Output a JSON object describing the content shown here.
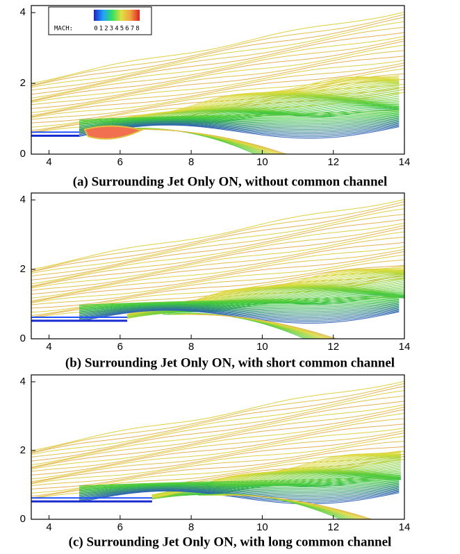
{
  "chart_data": [
    {
      "type": "contour",
      "xlim": [
        3.5,
        14
      ],
      "ylim": [
        0,
        4.2
      ],
      "xticks": [
        4,
        6,
        8,
        10,
        12,
        14
      ],
      "yticks": [
        0,
        2,
        4
      ],
      "caption": "(a) Surrounding Jet Only ON, without common channel",
      "legend": {
        "title": "MACH:",
        "ticks": [
          0,
          1,
          2,
          3,
          4,
          5,
          6,
          7,
          8
        ]
      }
    },
    {
      "type": "contour",
      "xlim": [
        3.5,
        14
      ],
      "ylim": [
        0,
        4.2
      ],
      "xticks": [
        4,
        6,
        8,
        10,
        12,
        14
      ],
      "yticks": [
        0,
        2,
        4
      ],
      "caption": "(b) Surrounding Jet Only ON, with short common channel"
    },
    {
      "type": "contour",
      "xlim": [
        3.5,
        14
      ],
      "ylim": [
        0,
        4.2
      ],
      "xticks": [
        4,
        6,
        8,
        10,
        12,
        14
      ],
      "yticks": [
        0,
        2,
        4
      ],
      "caption": "(c) Surrounding Jet Only ON, with long common channel"
    }
  ]
}
